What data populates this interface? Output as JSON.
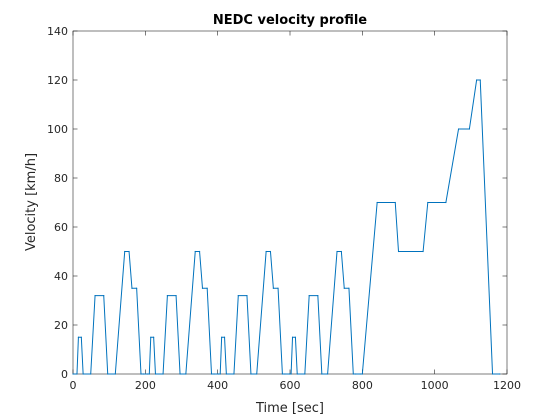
{
  "chart_data": {
    "type": "line",
    "title": "NEDC velocity profile",
    "xlabel": "Time [sec]",
    "ylabel": "Velocity [km/h]",
    "xlim": [
      0,
      1200
    ],
    "ylim": [
      0,
      140
    ],
    "xticks": [
      0,
      200,
      400,
      600,
      800,
      1000,
      1200
    ],
    "yticks": [
      0,
      20,
      40,
      60,
      80,
      100,
      120,
      140
    ],
    "grid": false,
    "series": [
      {
        "color": "#0072BD",
        "x": [
          0,
          11,
          15,
          23,
          28,
          49,
          61,
          85,
          96,
          117,
          143,
          155,
          163,
          176,
          188,
          195,
          206,
          211,
          215,
          223,
          228,
          249,
          261,
          285,
          296,
          312,
          338,
          350,
          358,
          371,
          383,
          390,
          402,
          407,
          411,
          419,
          424,
          445,
          457,
          481,
          492,
          508,
          534,
          546,
          554,
          567,
          579,
          586,
          598,
          603,
          607,
          615,
          620,
          641,
          653,
          677,
          688,
          704,
          730,
          742,
          750,
          763,
          775,
          782,
          794,
          800,
          841,
          891,
          900,
          968,
          981,
          1031,
          1066,
          1096,
          1116,
          1126,
          1160,
          1180
        ],
        "y": [
          0,
          0,
          15,
          15,
          0,
          0,
          32,
          32,
          0,
          0,
          50,
          50,
          35,
          35,
          0,
          0,
          0,
          0,
          15,
          15,
          0,
          0,
          32,
          32,
          0,
          0,
          50,
          50,
          35,
          35,
          0,
          0,
          0,
          0,
          15,
          15,
          0,
          0,
          32,
          32,
          0,
          0,
          50,
          50,
          35,
          35,
          0,
          0,
          0,
          0,
          15,
          15,
          0,
          0,
          32,
          32,
          0,
          0,
          50,
          50,
          35,
          35,
          0,
          0,
          0,
          0,
          70,
          70,
          50,
          50,
          70,
          70,
          100,
          100,
          120,
          120,
          0,
          0
        ]
      }
    ]
  }
}
